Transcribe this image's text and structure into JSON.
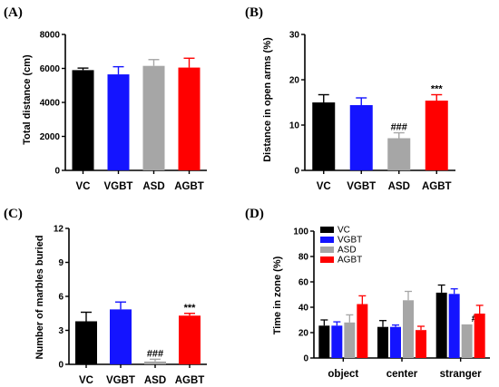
{
  "chart_data": [
    {
      "panel": "(A)",
      "type": "bar",
      "categories": [
        "VC",
        "VGBT",
        "ASD",
        "AGBT"
      ],
      "values": [
        5900,
        5650,
        6150,
        6050
      ],
      "errors": [
        120,
        450,
        370,
        550
      ],
      "colors": [
        "#000000",
        "#1414ff",
        "#a6a6a6",
        "#ff0000"
      ],
      "annotations": [
        "",
        "",
        "",
        ""
      ],
      "xlabel": "",
      "ylabel": "Total distance (cm)",
      "ylim": [
        0,
        8000
      ],
      "yticks": [
        0,
        2000,
        4000,
        6000,
        8000
      ],
      "grid": false
    },
    {
      "panel": "(B)",
      "type": "bar",
      "categories": [
        "VC",
        "VGBT",
        "ASD",
        "AGBT"
      ],
      "values": [
        15.0,
        14.4,
        7.1,
        15.4
      ],
      "errors": [
        1.7,
        1.6,
        1.2,
        1.3
      ],
      "colors": [
        "#000000",
        "#1414ff",
        "#a6a6a6",
        "#ff0000"
      ],
      "annotations": [
        "",
        "",
        "###",
        "***"
      ],
      "xlabel": "",
      "ylabel": "Distance in open arms (%)",
      "ylim": [
        0,
        30
      ],
      "yticks": [
        0,
        10,
        20,
        30
      ],
      "grid": false
    },
    {
      "panel": "(C)",
      "type": "bar",
      "categories": [
        "VC",
        "VGBT",
        "ASD",
        "AGBT"
      ],
      "values": [
        3.8,
        4.85,
        0.25,
        4.3
      ],
      "errors": [
        0.8,
        0.65,
        0.2,
        0.2
      ],
      "colors": [
        "#000000",
        "#1414ff",
        "#a6a6a6",
        "#ff0000"
      ],
      "annotations": [
        "",
        "",
        "###",
        "***"
      ],
      "xlabel": "",
      "ylabel": "Number of marbles buried",
      "ylim": [
        0,
        12
      ],
      "yticks": [
        0,
        3,
        6,
        9,
        12
      ],
      "grid": false
    },
    {
      "panel": "(D)",
      "type": "bar",
      "categories": [
        "object",
        "center",
        "stranger"
      ],
      "series": [
        {
          "name": "VC",
          "color": "#000000",
          "values": [
            25.5,
            24.5,
            51.5
          ],
          "errors": [
            4.5,
            5.0,
            6.0
          ]
        },
        {
          "name": "VGBT",
          "color": "#1414ff",
          "values": [
            25.5,
            24.5,
            50.5
          ],
          "errors": [
            3.0,
            1.5,
            4.0
          ]
        },
        {
          "name": "ASD",
          "color": "#a6a6a6",
          "values": [
            28.0,
            45.5,
            26.5
          ],
          "errors": [
            6.0,
            7.0,
            0.0
          ]
        },
        {
          "name": "AGBT",
          "color": "#ff0000",
          "values": [
            42.5,
            22.0,
            35.0
          ],
          "errors": [
            6.5,
            3.0,
            6.5
          ]
        }
      ],
      "annotations": [
        {
          "category": "stranger",
          "series": "ASD",
          "text": "#"
        }
      ],
      "xlabel": "",
      "ylabel": "Time in zone (%)",
      "ylim": [
        0,
        100
      ],
      "yticks": [
        0,
        20,
        40,
        60,
        80,
        100
      ],
      "legend": "top-left",
      "grid": false
    }
  ]
}
